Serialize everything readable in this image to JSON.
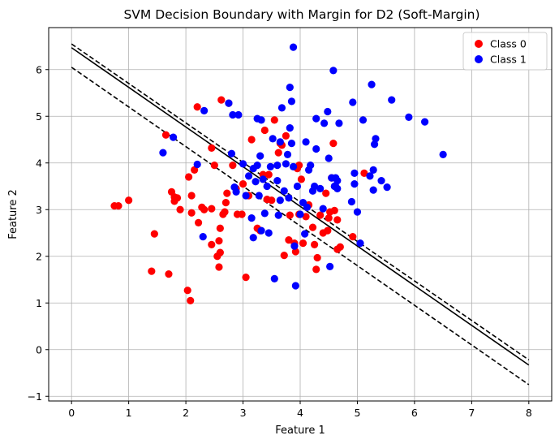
{
  "chart_data": {
    "type": "scatter",
    "title": "SVM Decision Boundary with Margin for D2 (Soft-Margin)",
    "xlabel": "Feature 1",
    "ylabel": "Feature 2",
    "xlim": [
      -0.4,
      8.4
    ],
    "ylim": [
      -1.1,
      6.9
    ],
    "xticks": [
      0,
      1,
      2,
      3,
      4,
      5,
      6,
      7,
      8
    ],
    "yticks": [
      -1,
      0,
      1,
      2,
      3,
      4,
      5,
      6
    ],
    "grid": true,
    "legend_position": "top-right",
    "series": [
      {
        "name": "Class 0",
        "color": "#ff0000",
        "points": [
          [
            0.75,
            3.08
          ],
          [
            0.82,
            3.08
          ],
          [
            1.0,
            3.2
          ],
          [
            1.45,
            2.48
          ],
          [
            1.4,
            1.68
          ],
          [
            1.7,
            1.62
          ],
          [
            1.65,
            4.6
          ],
          [
            1.75,
            3.38
          ],
          [
            1.8,
            3.27
          ],
          [
            1.8,
            3.18
          ],
          [
            1.85,
            3.25
          ],
          [
            1.9,
            3.0
          ],
          [
            2.03,
            1.27
          ],
          [
            2.08,
            1.05
          ],
          [
            2.05,
            3.7
          ],
          [
            2.1,
            3.3
          ],
          [
            2.1,
            2.93
          ],
          [
            2.15,
            3.85
          ],
          [
            2.2,
            5.2
          ],
          [
            2.22,
            2.72
          ],
          [
            2.28,
            3.05
          ],
          [
            2.32,
            3.0
          ],
          [
            2.45,
            3.02
          ],
          [
            2.45,
            4.32
          ],
          [
            2.45,
            2.25
          ],
          [
            2.5,
            3.95
          ],
          [
            2.55,
            2.0
          ],
          [
            2.58,
            2.33
          ],
          [
            2.58,
            1.77
          ],
          [
            2.6,
            2.08
          ],
          [
            2.6,
            2.6
          ],
          [
            2.62,
            5.35
          ],
          [
            2.65,
            2.9
          ],
          [
            2.68,
            2.95
          ],
          [
            2.7,
            3.15
          ],
          [
            2.72,
            3.35
          ],
          [
            2.75,
            5.28
          ],
          [
            2.82,
            3.95
          ],
          [
            2.88,
            3.45
          ],
          [
            2.9,
            2.9
          ],
          [
            2.98,
            2.9
          ],
          [
            3.0,
            3.55
          ],
          [
            3.05,
            1.55
          ],
          [
            3.1,
            3.3
          ],
          [
            3.15,
            4.5
          ],
          [
            3.25,
            2.6
          ],
          [
            3.3,
            2.55
          ],
          [
            3.35,
            3.75
          ],
          [
            3.38,
            4.7
          ],
          [
            3.42,
            3.22
          ],
          [
            3.45,
            3.75
          ],
          [
            3.5,
            3.2
          ],
          [
            3.55,
            4.92
          ],
          [
            3.62,
            4.22
          ],
          [
            3.65,
            4.42
          ],
          [
            3.68,
            4.38
          ],
          [
            3.72,
            2.02
          ],
          [
            3.75,
            4.58
          ],
          [
            3.8,
            2.35
          ],
          [
            3.82,
            2.88
          ],
          [
            3.9,
            2.28
          ],
          [
            3.92,
            2.1
          ],
          [
            3.95,
            3.88
          ],
          [
            3.98,
            3.95
          ],
          [
            3.98,
            2.9
          ],
          [
            4.02,
            3.65
          ],
          [
            4.05,
            2.28
          ],
          [
            4.1,
            2.85
          ],
          [
            4.15,
            3.1
          ],
          [
            4.22,
            2.62
          ],
          [
            4.25,
            2.25
          ],
          [
            4.28,
            1.72
          ],
          [
            4.3,
            1.97
          ],
          [
            4.35,
            2.88
          ],
          [
            4.4,
            2.5
          ],
          [
            4.48,
            2.55
          ],
          [
            4.45,
            3.35
          ],
          [
            4.5,
            2.82
          ],
          [
            4.52,
            2.95
          ],
          [
            4.55,
            3.68
          ],
          [
            4.58,
            4.42
          ],
          [
            4.6,
            2.98
          ],
          [
            4.65,
            2.78
          ],
          [
            4.65,
            2.15
          ],
          [
            4.7,
            2.2
          ],
          [
            4.92,
            2.42
          ],
          [
            5.12,
            3.78
          ]
        ]
      },
      {
        "name": "Class 1",
        "color": "#0000ff",
        "points": [
          [
            1.6,
            4.22
          ],
          [
            1.78,
            4.55
          ],
          [
            2.2,
            3.97
          ],
          [
            2.3,
            2.42
          ],
          [
            2.32,
            5.12
          ],
          [
            2.75,
            5.28
          ],
          [
            2.8,
            4.2
          ],
          [
            2.82,
            5.03
          ],
          [
            2.85,
            3.48
          ],
          [
            2.88,
            3.38
          ],
          [
            2.92,
            5.03
          ],
          [
            3.0,
            3.98
          ],
          [
            3.05,
            3.3
          ],
          [
            3.1,
            3.72
          ],
          [
            3.15,
            2.82
          ],
          [
            3.18,
            3.88
          ],
          [
            3.18,
            2.4
          ],
          [
            3.22,
            3.6
          ],
          [
            3.25,
            4.95
          ],
          [
            3.25,
            3.95
          ],
          [
            3.28,
            3.3
          ],
          [
            3.3,
            4.15
          ],
          [
            3.32,
            4.92
          ],
          [
            3.32,
            2.55
          ],
          [
            3.35,
            3.65
          ],
          [
            3.38,
            2.92
          ],
          [
            3.42,
            3.5
          ],
          [
            3.45,
            2.5
          ],
          [
            3.48,
            3.92
          ],
          [
            3.52,
            4.52
          ],
          [
            3.55,
            1.52
          ],
          [
            3.6,
            3.95
          ],
          [
            3.6,
            3.62
          ],
          [
            3.62,
            2.88
          ],
          [
            3.65,
            3.2
          ],
          [
            3.65,
            4.45
          ],
          [
            3.68,
            5.18
          ],
          [
            3.72,
            3.4
          ],
          [
            3.75,
            3.98
          ],
          [
            3.78,
            4.18
          ],
          [
            3.8,
            3.25
          ],
          [
            3.82,
            5.62
          ],
          [
            3.82,
            4.75
          ],
          [
            3.85,
            5.32
          ],
          [
            3.85,
            4.42
          ],
          [
            3.88,
            3.92
          ],
          [
            3.88,
            6.48
          ],
          [
            3.9,
            2.22
          ],
          [
            3.92,
            1.37
          ],
          [
            3.95,
            3.5
          ],
          [
            4.0,
            2.9
          ],
          [
            4.05,
            3.15
          ],
          [
            4.08,
            2.48
          ],
          [
            4.1,
            4.45
          ],
          [
            4.12,
            3.05
          ],
          [
            4.15,
            3.85
          ],
          [
            4.18,
            3.95
          ],
          [
            4.22,
            3.4
          ],
          [
            4.25,
            3.5
          ],
          [
            4.28,
            4.3
          ],
          [
            4.28,
            4.95
          ],
          [
            4.35,
            3.45
          ],
          [
            4.4,
            3.02
          ],
          [
            4.42,
            4.85
          ],
          [
            4.48,
            5.1
          ],
          [
            4.5,
            4.1
          ],
          [
            4.52,
            1.78
          ],
          [
            4.55,
            3.68
          ],
          [
            4.58,
            5.98
          ],
          [
            4.6,
            3.5
          ],
          [
            4.62,
            3.5
          ],
          [
            4.62,
            3.68
          ],
          [
            4.65,
            3.62
          ],
          [
            4.65,
            3.45
          ],
          [
            4.68,
            4.85
          ],
          [
            4.9,
            3.17
          ],
          [
            4.92,
            5.3
          ],
          [
            4.95,
            3.55
          ],
          [
            4.95,
            3.78
          ],
          [
            5.0,
            2.95
          ],
          [
            5.05,
            2.28
          ],
          [
            5.1,
            4.92
          ],
          [
            5.22,
            3.72
          ],
          [
            5.25,
            5.68
          ],
          [
            5.28,
            3.42
          ],
          [
            5.28,
            3.85
          ],
          [
            5.3,
            4.4
          ],
          [
            5.32,
            4.52
          ],
          [
            5.42,
            3.62
          ],
          [
            5.52,
            3.48
          ],
          [
            5.6,
            5.35
          ],
          [
            5.9,
            4.98
          ],
          [
            6.18,
            4.88
          ],
          [
            6.5,
            4.18
          ]
        ]
      }
    ],
    "lines": [
      {
        "style": "solid",
        "points": [
          [
            0,
            6.47
          ],
          [
            8,
            -0.33
          ]
        ]
      },
      {
        "style": "dashed",
        "points": [
          [
            0,
            6.55
          ],
          [
            8,
            -0.22
          ]
        ]
      },
      {
        "style": "dashed",
        "points": [
          [
            0,
            6.05
          ],
          [
            8,
            -0.75
          ]
        ]
      }
    ]
  }
}
